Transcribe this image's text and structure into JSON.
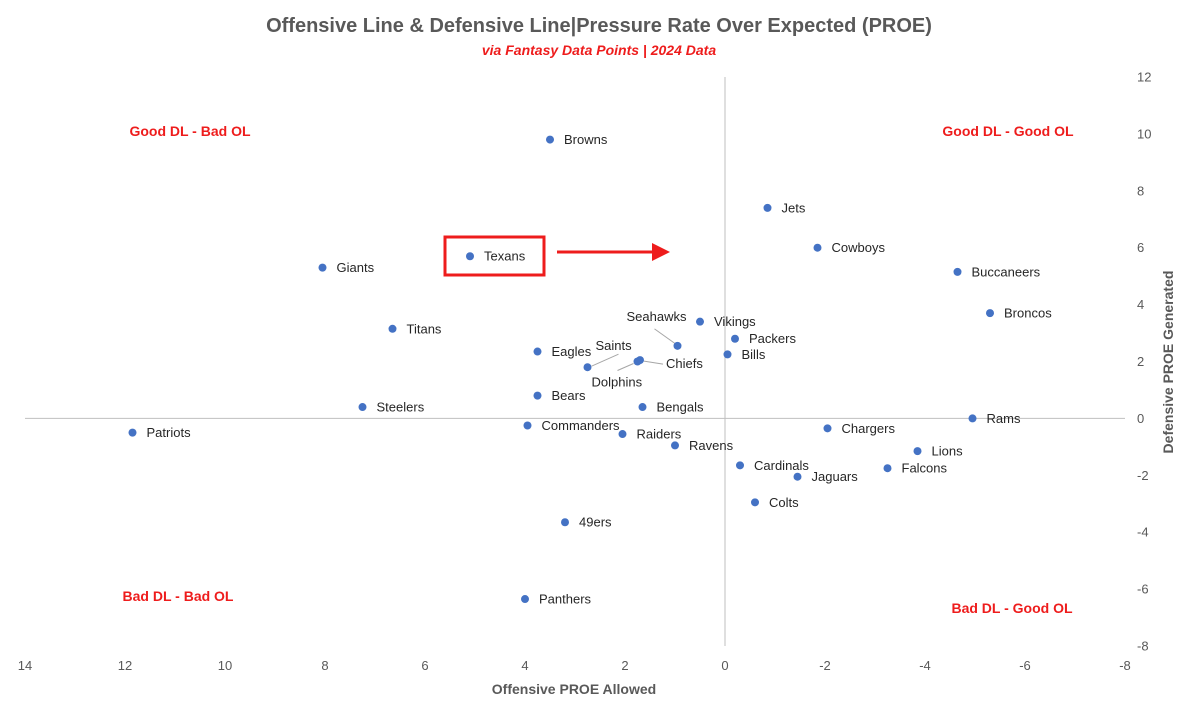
{
  "chart_data": {
    "type": "scatter",
    "title": "Offensive Line & Defensive Line|Pressure Rate Over Expected (PROE)",
    "subtitle": "via Fantasy Data Points | 2024 Data",
    "xlabel": "Offensive PROE Allowed",
    "ylabel": "Defensive PROE Generated",
    "xlim": [
      14,
      -8
    ],
    "ylim": [
      -8,
      12
    ],
    "x_reversed": true,
    "x_ticks": [
      14,
      12,
      10,
      8,
      6,
      4,
      2,
      0,
      -2,
      -4,
      -6,
      -8
    ],
    "y_ticks": [
      12,
      10,
      8,
      6,
      4,
      2,
      0,
      -2,
      -4,
      -6,
      -8
    ],
    "grid": false,
    "point_color": "#4472c4",
    "accent_color": "#ee1c1c",
    "points": [
      {
        "team": "Browns",
        "x": 3.5,
        "y": 9.8
      },
      {
        "team": "Jets",
        "x": -0.85,
        "y": 7.4
      },
      {
        "team": "Cowboys",
        "x": -1.85,
        "y": 6.0
      },
      {
        "team": "Texans",
        "x": 5.1,
        "y": 5.7
      },
      {
        "team": "Giants",
        "x": 8.05,
        "y": 5.3
      },
      {
        "team": "Buccaneers",
        "x": -4.65,
        "y": 5.15
      },
      {
        "team": "Broncos",
        "x": -5.3,
        "y": 3.7
      },
      {
        "team": "Vikings",
        "x": 0.5,
        "y": 3.4
      },
      {
        "team": "Titans",
        "x": 6.65,
        "y": 3.15
      },
      {
        "team": "Packers",
        "x": -0.2,
        "y": 2.8
      },
      {
        "team": "Seahawks",
        "x": 0.95,
        "y": 2.55
      },
      {
        "team": "Eagles",
        "x": 3.75,
        "y": 2.35
      },
      {
        "team": "Bills",
        "x": -0.05,
        "y": 2.25
      },
      {
        "team": "Chiefs",
        "x": 1.7,
        "y": 2.05
      },
      {
        "team": "Dolphins",
        "x": 1.75,
        "y": 2.0
      },
      {
        "team": "Saints",
        "x": 2.75,
        "y": 1.8
      },
      {
        "team": "Bears",
        "x": 3.75,
        "y": 0.8
      },
      {
        "team": "Steelers",
        "x": 7.25,
        "y": 0.4
      },
      {
        "team": "Bengals",
        "x": 1.65,
        "y": 0.4
      },
      {
        "team": "Rams",
        "x": -4.95,
        "y": 0.0
      },
      {
        "team": "Commanders",
        "x": 3.95,
        "y": -0.25
      },
      {
        "team": "Chargers",
        "x": -2.05,
        "y": -0.35
      },
      {
        "team": "Patriots",
        "x": 11.85,
        "y": -0.5
      },
      {
        "team": "Raiders",
        "x": 2.05,
        "y": -0.55
      },
      {
        "team": "Ravens",
        "x": 1.0,
        "y": -0.95
      },
      {
        "team": "Lions",
        "x": -3.85,
        "y": -1.15
      },
      {
        "team": "Cardinals",
        "x": -0.3,
        "y": -1.65
      },
      {
        "team": "Falcons",
        "x": -3.25,
        "y": -1.75
      },
      {
        "team": "Jaguars",
        "x": -1.45,
        "y": -2.05
      },
      {
        "team": "Colts",
        "x": -0.6,
        "y": -2.95
      },
      {
        "team": "49ers",
        "x": 3.2,
        "y": -3.65
      },
      {
        "team": "Panthers",
        "x": 4.0,
        "y": -6.35
      }
    ],
    "quadrant_labels": {
      "top_left": "Good DL - Bad OL",
      "top_right": "Good DL - Good OL",
      "bottom_left": "Bad DL - Bad OL",
      "bottom_right": "Bad DL - Good OL"
    },
    "annotations": [
      {
        "type": "highlight-box",
        "team": "Texans",
        "color": "#ee1c1c"
      },
      {
        "type": "arrow",
        "direction": "right",
        "color": "#ee1c1c"
      }
    ]
  }
}
